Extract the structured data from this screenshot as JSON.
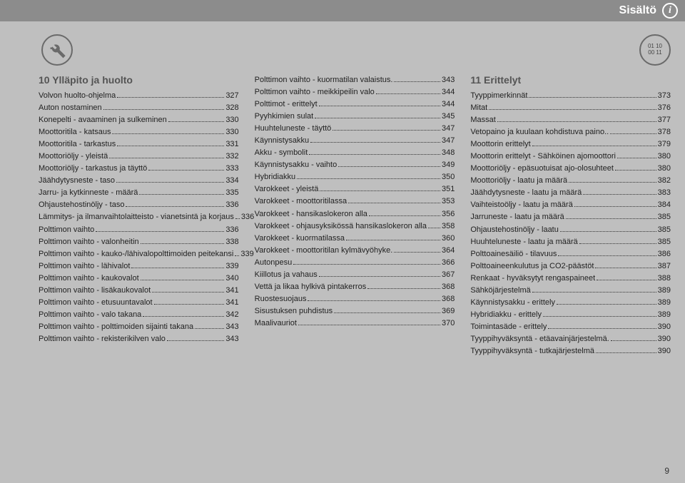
{
  "header": {
    "title": "Sisältö",
    "info_glyph": "i"
  },
  "badge": {
    "top": "01 10",
    "bottom": "00 11"
  },
  "page_number": "9",
  "columns": [
    {
      "heading": "10 Ylläpito ja huolto",
      "items": [
        {
          "label": "Volvon huolto-ohjelma",
          "page": "327"
        },
        {
          "label": "Auton nostaminen",
          "page": "328"
        },
        {
          "label": "Konepelti - avaaminen ja sulkeminen",
          "page": "330"
        },
        {
          "label": "Moottoritila - katsaus",
          "page": "330"
        },
        {
          "label": "Moottoritila - tarkastus",
          "page": "331"
        },
        {
          "label": "Moottoriöljy - yleistä",
          "page": "332"
        },
        {
          "label": "Moottoriöljy - tarkastus ja täyttö",
          "page": "333"
        },
        {
          "label": "Jäähdytysneste - taso",
          "page": "334"
        },
        {
          "label": "Jarru- ja kytkinneste - määrä",
          "page": "335"
        },
        {
          "label": "Ohjaustehostinöljy - taso",
          "page": "336"
        },
        {
          "label": "Lämmitys- ja ilmanvaihtolaitteisto - vianetsintä ja korjaus",
          "page": "336",
          "wrap": true
        },
        {
          "label": "Polttimon vaihto",
          "page": "336"
        },
        {
          "label": "Polttimon vaihto - valonheitin",
          "page": "338"
        },
        {
          "label": "Polttimon vaihto - kauko-/lähivalopolttimoiden peitekansi",
          "page": "339",
          "wrap": true
        },
        {
          "label": "Polttimon vaihto - lähivalot",
          "page": "339"
        },
        {
          "label": "Polttimon vaihto - kaukovalot",
          "page": "340"
        },
        {
          "label": "Polttimon vaihto - lisäkaukovalot",
          "page": "341"
        },
        {
          "label": "Polttimon vaihto - etusuuntavalot",
          "page": "341"
        },
        {
          "label": "Polttimon vaihto - valo takana",
          "page": "342"
        },
        {
          "label": "Polttimon vaihto - polttimoiden sijainti takana",
          "page": "343",
          "wrap": true
        },
        {
          "label": "Polttimon vaihto - rekisterikilven valo",
          "page": "343"
        }
      ]
    },
    {
      "items": [
        {
          "label": "Polttimon vaihto - kuormatilan valaistus.",
          "page": "343"
        },
        {
          "label": "Polttimon vaihto - meikkipeilin valo",
          "page": "344"
        },
        {
          "label": "Polttimot - erittelyt ",
          "page": "344"
        },
        {
          "label": "Pyyhkimien sulat",
          "page": "345"
        },
        {
          "label": "Huuhteluneste - täyttö",
          "page": "347"
        },
        {
          "label": "Käynnistysakku",
          "page": "347"
        },
        {
          "label": "Akku - symbolit",
          "page": "348"
        },
        {
          "label": "Käynnistysakku - vaihto",
          "page": "349"
        },
        {
          "label": "Hybridiakku",
          "page": "350"
        },
        {
          "label": "Varokkeet - yleistä",
          "page": "351"
        },
        {
          "label": "Varokkeet - moottoritilassa",
          "page": "353"
        },
        {
          "label": "Varokkeet - hansikaslokeron alla",
          "page": "356"
        },
        {
          "label": "Varokkeet - ohjausyksikössä hansikaslokeron alla",
          "page": "358",
          "wrap": true
        },
        {
          "label": "Varokkeet - kuormatilassa",
          "page": "360"
        },
        {
          "label": "Varokkeet - moottoritilan kylmävyöhyke.",
          "page": "364"
        },
        {
          "label": "Autonpesu",
          "page": "366"
        },
        {
          "label": "Kiillotus ja vahaus",
          "page": "367"
        },
        {
          "label": "Vettä ja likaa hylkivä pintakerros",
          "page": "368"
        },
        {
          "label": "Ruostesuojaus",
          "page": "368"
        },
        {
          "label": "Sisustuksen puhdistus",
          "page": "369"
        },
        {
          "label": "Maalivauriot",
          "page": "370"
        }
      ]
    },
    {
      "heading": "11 Erittelyt",
      "items": [
        {
          "label": "Tyyppimerkinnät",
          "page": "373"
        },
        {
          "label": "Mitat",
          "page": "376"
        },
        {
          "label": "Massat",
          "page": "377"
        },
        {
          "label": "Vetopaino ja kuulaan kohdistuva paino..",
          "page": "378"
        },
        {
          "label": "Moottorin erittelyt",
          "page": "379"
        },
        {
          "label": "Moottorin erittelyt - Sähköinen ajomoottori",
          "page": "380",
          "wrap": true
        },
        {
          "label": "Moottoriöljy - epäsuotuisat ajo-olosuhteet",
          "page": "380",
          "wrap": true
        },
        {
          "label": "Moottoriöljy - laatu ja määrä",
          "page": "382"
        },
        {
          "label": "Jäähdytysneste - laatu ja määrä",
          "page": "383"
        },
        {
          "label": "Vaihteistoöljy - laatu ja määrä",
          "page": "384"
        },
        {
          "label": "Jarruneste - laatu ja määrä",
          "page": "385"
        },
        {
          "label": "Ohjaustehostinöljy - laatu",
          "page": "385"
        },
        {
          "label": "Huuhteluneste - laatu ja määrä",
          "page": "385"
        },
        {
          "label": "Polttoainesäiliö - tilavuus",
          "page": "386"
        },
        {
          "label": "Polttoaineenkulutus ja CO2-päästöt",
          "page": "387"
        },
        {
          "label": "Renkaat - hyväksytyt rengaspaineet",
          "page": "388"
        },
        {
          "label": "Sähköjärjestelmä",
          "page": "389"
        },
        {
          "label": "Käynnistysakku - erittely",
          "page": "389"
        },
        {
          "label": "Hybridiakku - erittely",
          "page": "389"
        },
        {
          "label": "Toimintasäde - erittely",
          "page": "390"
        },
        {
          "label": "Tyyppihyväksyntä - etäavainjärjestelmä.",
          "page": "390"
        },
        {
          "label": "Tyyppihyväksyntä - tutkajärjestelmä",
          "page": "390"
        }
      ]
    }
  ]
}
